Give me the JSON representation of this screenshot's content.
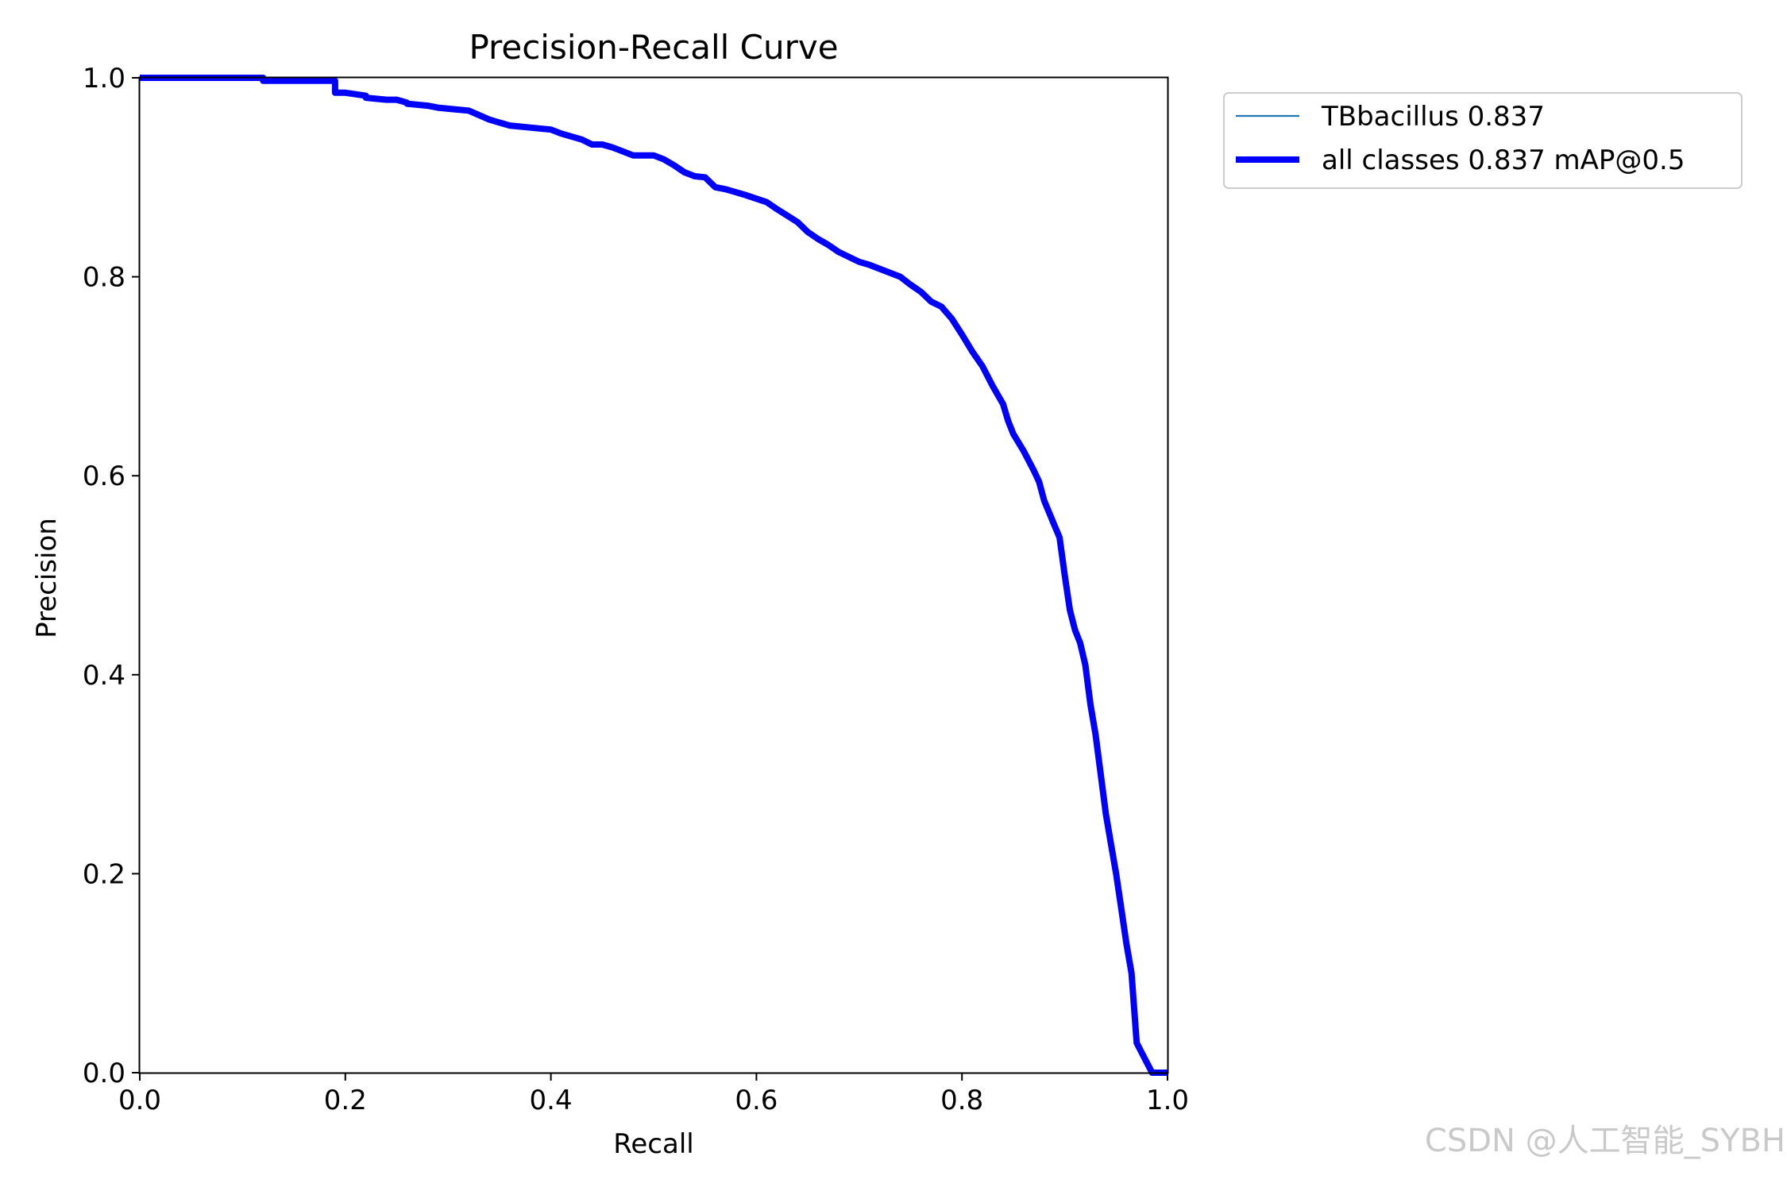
{
  "chart_data": {
    "type": "line",
    "title": "Precision-Recall Curve",
    "xlabel": "Recall",
    "ylabel": "Precision",
    "xlim": [
      0,
      1
    ],
    "ylim": [
      0,
      1
    ],
    "xticks": [
      "0.0",
      "0.2",
      "0.4",
      "0.6",
      "0.8",
      "1.0"
    ],
    "yticks": [
      "0.0",
      "0.2",
      "0.4",
      "0.6",
      "0.8",
      "1.0"
    ],
    "grid": false,
    "legend_position": "outside-top-right",
    "series": [
      {
        "name": "TBbacillus 0.837",
        "color": "#1f77b4",
        "line_style": "thin",
        "x": [
          0,
          0.12,
          0.12,
          0.19,
          0.19,
          0.2,
          0.22,
          0.22,
          0.24,
          0.25,
          0.26,
          0.26,
          0.28,
          0.29,
          0.29,
          0.31,
          0.32,
          0.34,
          0.35,
          0.36,
          0.38,
          0.4,
          0.41,
          0.43,
          0.44,
          0.45,
          0.46,
          0.47,
          0.48,
          0.49,
          0.5,
          0.51,
          0.52,
          0.53,
          0.54,
          0.55,
          0.56,
          0.57,
          0.58,
          0.59,
          0.61,
          0.62,
          0.64,
          0.65,
          0.66,
          0.67,
          0.68,
          0.7,
          0.71,
          0.72,
          0.74,
          0.75,
          0.76,
          0.77,
          0.78,
          0.79,
          0.8,
          0.81,
          0.82,
          0.83,
          0.84,
          0.845,
          0.85,
          0.86,
          0.87,
          0.875,
          0.88,
          0.89,
          0.895,
          0.9,
          0.905,
          0.91,
          0.915,
          0.92,
          0.925,
          0.93,
          0.935,
          0.94,
          0.945,
          0.95,
          0.955,
          0.96,
          0.965,
          0.97,
          0.975,
          0.98,
          0.985,
          0.99,
          1.0
        ],
        "y": [
          1.0,
          1.0,
          0.997,
          0.997,
          0.985,
          0.985,
          0.982,
          0.98,
          0.978,
          0.978,
          0.975,
          0.974,
          0.972,
          0.97,
          0.97,
          0.968,
          0.967,
          0.958,
          0.955,
          0.952,
          0.95,
          0.948,
          0.944,
          0.938,
          0.933,
          0.933,
          0.93,
          0.926,
          0.922,
          0.922,
          0.922,
          0.918,
          0.912,
          0.905,
          0.901,
          0.9,
          0.89,
          0.888,
          0.885,
          0.882,
          0.875,
          0.868,
          0.855,
          0.845,
          0.838,
          0.832,
          0.825,
          0.815,
          0.812,
          0.808,
          0.8,
          0.792,
          0.785,
          0.775,
          0.77,
          0.758,
          0.742,
          0.725,
          0.71,
          0.69,
          0.672,
          0.655,
          0.642,
          0.625,
          0.605,
          0.594,
          0.575,
          0.55,
          0.538,
          0.5,
          0.465,
          0.445,
          0.432,
          0.41,
          0.37,
          0.34,
          0.3,
          0.26,
          0.23,
          0.2,
          0.165,
          0.13,
          0.1,
          0.03,
          0.02,
          0.01,
          0.0,
          0.0,
          0.0
        ]
      },
      {
        "name": "all classes 0.837 mAP@0.5",
        "color": "#0000ff",
        "line_style": "thick",
        "x": [
          0,
          0.12,
          0.12,
          0.19,
          0.19,
          0.2,
          0.22,
          0.22,
          0.24,
          0.25,
          0.26,
          0.26,
          0.28,
          0.29,
          0.29,
          0.31,
          0.32,
          0.34,
          0.35,
          0.36,
          0.38,
          0.4,
          0.41,
          0.43,
          0.44,
          0.45,
          0.46,
          0.47,
          0.48,
          0.49,
          0.5,
          0.51,
          0.52,
          0.53,
          0.54,
          0.55,
          0.56,
          0.57,
          0.58,
          0.59,
          0.61,
          0.62,
          0.64,
          0.65,
          0.66,
          0.67,
          0.68,
          0.7,
          0.71,
          0.72,
          0.74,
          0.75,
          0.76,
          0.77,
          0.78,
          0.79,
          0.8,
          0.81,
          0.82,
          0.83,
          0.84,
          0.845,
          0.85,
          0.86,
          0.87,
          0.875,
          0.88,
          0.89,
          0.895,
          0.9,
          0.905,
          0.91,
          0.915,
          0.92,
          0.925,
          0.93,
          0.935,
          0.94,
          0.945,
          0.95,
          0.955,
          0.96,
          0.965,
          0.97,
          0.975,
          0.98,
          0.985,
          0.99,
          1.0
        ],
        "y": [
          1.0,
          1.0,
          0.997,
          0.997,
          0.985,
          0.985,
          0.982,
          0.98,
          0.978,
          0.978,
          0.975,
          0.974,
          0.972,
          0.97,
          0.97,
          0.968,
          0.967,
          0.958,
          0.955,
          0.952,
          0.95,
          0.948,
          0.944,
          0.938,
          0.933,
          0.933,
          0.93,
          0.926,
          0.922,
          0.922,
          0.922,
          0.918,
          0.912,
          0.905,
          0.901,
          0.9,
          0.89,
          0.888,
          0.885,
          0.882,
          0.875,
          0.868,
          0.855,
          0.845,
          0.838,
          0.832,
          0.825,
          0.815,
          0.812,
          0.808,
          0.8,
          0.792,
          0.785,
          0.775,
          0.77,
          0.758,
          0.742,
          0.725,
          0.71,
          0.69,
          0.672,
          0.655,
          0.642,
          0.625,
          0.605,
          0.594,
          0.575,
          0.55,
          0.538,
          0.5,
          0.465,
          0.445,
          0.432,
          0.41,
          0.37,
          0.34,
          0.3,
          0.26,
          0.23,
          0.2,
          0.165,
          0.13,
          0.1,
          0.03,
          0.02,
          0.01,
          0.0,
          0.0,
          0.0
        ]
      }
    ]
  },
  "watermark": "CSDN @人工智能_SYBH"
}
